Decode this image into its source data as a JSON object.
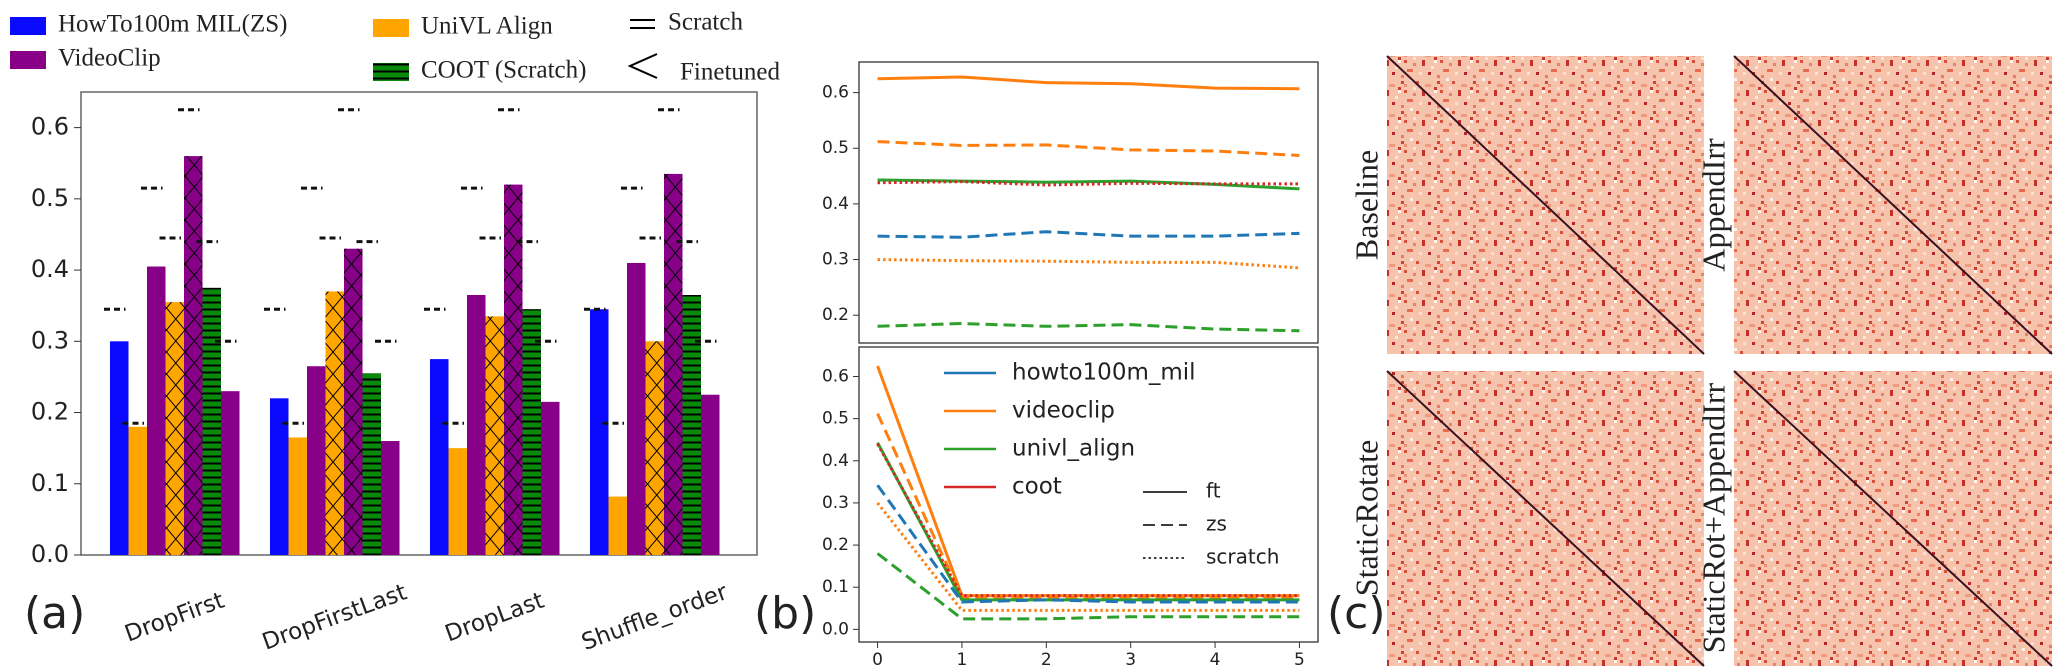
{
  "chart_data": [
    {
      "type": "bar",
      "legend": [
        {
          "label": "HowTo100m MIL(ZS)",
          "color": "#0a0aff"
        },
        {
          "label": "VideoClip",
          "color": "#870087"
        },
        {
          "label": "UniVL Align",
          "color": "#ffa500"
        },
        {
          "label": "COOT (Scratch)",
          "color": "#0a8a0a",
          "hatch": "-"
        }
      ],
      "legend_markers": [
        {
          "symbol": "=",
          "label": "Scratch"
        },
        {
          "symbol": "<",
          "label": "Finetuned"
        }
      ],
      "categories": [
        "DropFirst",
        "DropFirstLast",
        "DropLast",
        "Shuffle_order"
      ],
      "series": [
        {
          "color": "#0a0aff",
          "values": [
            0.3,
            0.22,
            0.275,
            0.345
          ],
          "reference": 0.345
        },
        {
          "color": "#ffa500",
          "values": [
            0.18,
            0.165,
            0.15,
            0.082
          ],
          "reference": 0.185
        },
        {
          "color": "#870087",
          "values": [
            0.405,
            0.265,
            0.365,
            0.41
          ],
          "reference": 0.515
        },
        {
          "color": "#ffa500",
          "hatch": "x",
          "values": [
            0.355,
            0.37,
            0.335,
            0.3
          ],
          "reference": 0.445
        },
        {
          "color": "#870087",
          "hatch": "x",
          "values": [
            0.56,
            0.43,
            0.52,
            0.535
          ],
          "reference": 0.625
        },
        {
          "color": "#0a8a0a",
          "hatch": "-",
          "values": [
            0.375,
            0.255,
            0.345,
            0.365
          ],
          "reference": 0.44
        },
        {
          "color": "#870087",
          "values": [
            0.23,
            0.16,
            0.215,
            0.225
          ],
          "reference": 0.3
        }
      ],
      "ylim": [
        0,
        0.65
      ],
      "yticks": [
        {
          "value": 0,
          "label": "0.0"
        },
        0.1,
        0.2,
        0.3,
        0.4,
        0.5,
        0.6
      ],
      "panel_label": "(a)"
    },
    {
      "type": "line",
      "x": [
        0,
        1,
        2,
        3,
        4,
        5
      ],
      "xlim": [
        -0.22,
        5.22
      ],
      "ylim": [
        0.15,
        0.655
      ],
      "yticks": [
        0.2,
        0.3,
        0.4,
        0.5,
        0.6
      ],
      "series": [
        {
          "color": "#ff7f0e",
          "dash": "solid",
          "values": [
            0.625,
            0.628,
            0.618,
            0.616,
            0.608,
            0.607
          ]
        },
        {
          "color": "#ff7f0e",
          "dash": "dashed",
          "values": [
            0.512,
            0.505,
            0.506,
            0.497,
            0.495,
            0.487
          ]
        },
        {
          "color": "#2ca02c",
          "dash": "solid",
          "values": [
            0.443,
            0.441,
            0.439,
            0.441,
            0.435,
            0.427
          ]
        },
        {
          "color": "#d62728",
          "dash": "dotted",
          "values": [
            0.438,
            0.44,
            0.434,
            0.437,
            0.436,
            0.436
          ]
        },
        {
          "color": "#1f77b4",
          "dash": "dashed",
          "values": [
            0.342,
            0.34,
            0.35,
            0.342,
            0.342,
            0.347
          ]
        },
        {
          "color": "#ff7f0e",
          "dash": "dotted",
          "values": [
            0.3,
            0.298,
            0.297,
            0.295,
            0.295,
            0.285
          ]
        },
        {
          "color": "#2ca02c",
          "dash": "dashed",
          "values": [
            0.18,
            0.185,
            0.18,
            0.183,
            0.175,
            0.172
          ]
        }
      ]
    },
    {
      "type": "line",
      "x": [
        0,
        1,
        2,
        3,
        4,
        5
      ],
      "xlim": [
        -0.22,
        5.22
      ],
      "xticks": [
        0,
        1,
        2,
        3,
        4,
        5
      ],
      "ylim": [
        -0.03,
        0.67
      ],
      "yticks": [
        {
          "value": 0,
          "label": "0.0"
        },
        0.1,
        0.2,
        0.3,
        0.4,
        0.5,
        0.6
      ],
      "series": [
        {
          "color": "#ff7f0e",
          "dash": "solid",
          "values": [
            0.625,
            0.08,
            0.08,
            0.08,
            0.08,
            0.08
          ]
        },
        {
          "color": "#ff7f0e",
          "dash": "dashed",
          "values": [
            0.512,
            0.075,
            0.075,
            0.075,
            0.075,
            0.075
          ]
        },
        {
          "color": "#2ca02c",
          "dash": "solid",
          "values": [
            0.443,
            0.07,
            0.07,
            0.07,
            0.07,
            0.07
          ]
        },
        {
          "color": "#d62728",
          "dash": "dotted",
          "values": [
            0.44,
            0.08,
            0.08,
            0.08,
            0.08,
            0.08
          ]
        },
        {
          "color": "#1f77b4",
          "dash": "dashed",
          "values": [
            0.342,
            0.065,
            0.07,
            0.065,
            0.065,
            0.065
          ]
        },
        {
          "color": "#ff7f0e",
          "dash": "dotted",
          "values": [
            0.3,
            0.045,
            0.045,
            0.045,
            0.045,
            0.045
          ]
        },
        {
          "color": "#2ca02c",
          "dash": "dashed",
          "values": [
            0.18,
            0.025,
            0.025,
            0.03,
            0.03,
            0.03
          ]
        }
      ],
      "legend_models": [
        {
          "name": "howto100m_mil",
          "color": "#1f77b4"
        },
        {
          "name": "videoclip",
          "color": "#ff7f0e"
        },
        {
          "name": "univl_align",
          "color": "#2ca02c"
        },
        {
          "name": "coot",
          "color": "#d62728"
        }
      ],
      "legend_styles": [
        {
          "name": "ft",
          "dash": "solid"
        },
        {
          "name": "zs",
          "dash": "dashed"
        },
        {
          "name": "scratch",
          "dash": "dotted"
        }
      ],
      "panel_label": "(b)"
    },
    {
      "type": "heatmap",
      "panels": [
        "Baseline",
        "AppendIrr",
        "StaticRotate",
        "StaticRot+AppendIrr"
      ],
      "panel_label": "(c)"
    }
  ]
}
